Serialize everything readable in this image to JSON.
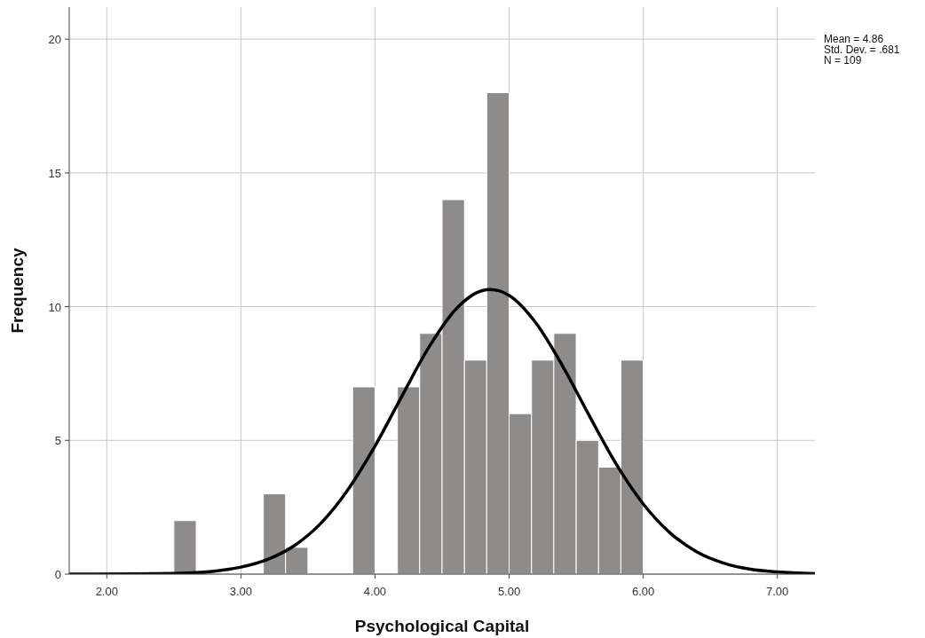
{
  "chart_data": {
    "type": "histogram",
    "xlabel": "Psychological Capital",
    "ylabel": "Frequency",
    "bins": [
      2.5,
      2.667,
      2.833,
      3,
      3.167,
      3.333,
      3.5,
      3.667,
      3.833,
      4,
      4.167,
      4.333,
      4.5,
      4.667,
      4.833,
      5,
      5.167,
      5.333,
      5.5,
      5.667,
      5.833,
      6
    ],
    "values": [
      2,
      0,
      0,
      0,
      3,
      1,
      0,
      0,
      7,
      0,
      7,
      9,
      14,
      8,
      18,
      6,
      8,
      9,
      5,
      4,
      8
    ],
    "color": "#8e8b8b",
    "series": [
      {
        "type": "line",
        "color": "#000000",
        "x": [
          1.72,
          2.2,
          2.6,
          2.8,
          3.0,
          3.2,
          3.4,
          3.6,
          3.8,
          4.0,
          4.2,
          4.4,
          4.6,
          4.8,
          4.86,
          5.0,
          5.2,
          5.4,
          5.6,
          5.8,
          6.0,
          6.2,
          6.4,
          6.6,
          6.8,
          7.0,
          7.28
        ],
        "values": [
          0,
          0.01,
          0.04,
          0.11,
          0.26,
          0.55,
          1.07,
          1.92,
          3.17,
          4.79,
          6.65,
          8.47,
          9.89,
          10.6,
          10.64,
          10.42,
          9.39,
          7.77,
          5.9,
          4.1,
          2.62,
          1.54,
          0.83,
          0.41,
          0.18,
          0.08,
          0.02
        ]
      }
    ],
    "xlim": [
      1.72,
      7.28
    ],
    "ylim": [
      0,
      21.2
    ],
    "xticks": [
      {
        "value": 2,
        "label": "2.00"
      },
      {
        "value": 3,
        "label": "3.00"
      },
      {
        "value": 4,
        "label": "4.00"
      },
      {
        "value": 5,
        "label": "5.00"
      },
      {
        "value": 6,
        "label": "6.00"
      },
      {
        "value": 7,
        "label": "7.00"
      }
    ],
    "yticks": [
      0,
      5,
      10,
      15,
      20
    ],
    "grid": true,
    "annotations": [
      "Mean = 4.86",
      "Std. Dev. = .681",
      "N = 109"
    ]
  }
}
